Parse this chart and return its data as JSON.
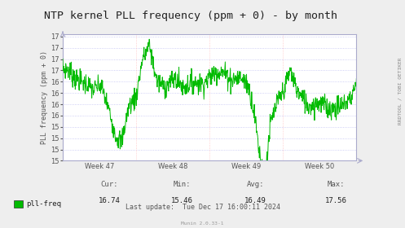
{
  "title": "NTP kernel PLL frequency (ppm + 0) - by month",
  "ylabel": "PLL frequency (ppm + 0)",
  "ylim": [
    15.0,
    17.8
  ],
  "yticks": [
    15.0,
    15.25,
    15.5,
    15.75,
    16.0,
    16.25,
    16.5,
    16.75,
    17.0,
    17.25,
    17.5,
    17.75
  ],
  "line_color": "#00bb00",
  "bg_color": "#eeeeee",
  "plot_bg": "#ffffff",
  "grid_color_h": "#aaaaee",
  "grid_color_v": "#ffaaaa",
  "border_color": "#aaaacc",
  "week_labels": [
    "Week 47",
    "Week 48",
    "Week 49",
    "Week 50"
  ],
  "legend_label": "pll-freq",
  "legend_color": "#00bb00",
  "cur": "16.74",
  "min": "15.46",
  "avg": "16.49",
  "max": "17.56",
  "last_update": "Tue Dec 17 16:00:11 2024",
  "footer": "Munin 2.0.33-1",
  "rrdtool_text": "RRDTOOL / TOBI OETIKER",
  "title_fontsize": 9.5,
  "axis_label_fontsize": 6,
  "tick_fontsize": 6,
  "stats_fontsize": 6.5
}
